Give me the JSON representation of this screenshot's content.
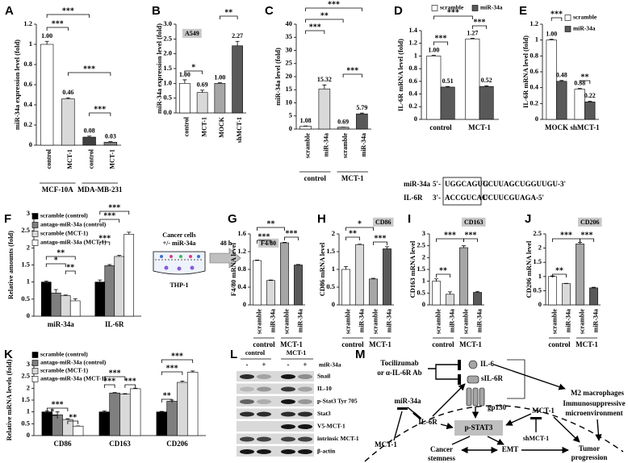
{
  "chart_data": [
    {
      "type": "bar",
      "panel": "A",
      "y_label": "miR-34a expression level (fold)",
      "categories": [
        "control",
        "MCT-1",
        "control",
        "MCT-1"
      ],
      "groups": [
        "MCF-10A",
        "MDA-MB-231"
      ],
      "values": [
        1,
        0.46,
        0.08,
        0.03
      ],
      "value_labels": [
        "1.00",
        "0.46",
        "0.08",
        "0.03"
      ],
      "errors": [
        0.03,
        0.01,
        0.01,
        0.005
      ],
      "colors": [
        "#ffffff",
        "#d9d9d9",
        "#404040",
        "#7f7f7f"
      ],
      "data_labels": true,
      "ylim": [
        0,
        1.2
      ],
      "yticks": [
        0,
        0.2,
        0.4,
        0.6,
        0.8,
        1,
        1.2
      ],
      "annotations": [
        "***",
        "***",
        "***",
        "***"
      ]
    },
    {
      "type": "bar",
      "panel": "B",
      "tag": "A549",
      "y_label": "miR-34a expression level (fold)",
      "categories": [
        "control",
        "MCT-1",
        "MOCK",
        "shMCT-1"
      ],
      "values": [
        1,
        0.69,
        1,
        2.27
      ],
      "value_labels": [
        "1.00",
        "0.69",
        "1.00",
        "2.27"
      ],
      "errors": [
        0.12,
        0.08,
        0.02,
        0.15
      ],
      "colors": [
        "#ffffff",
        "#d9d9d9",
        "#a6a6a6",
        "#595959"
      ],
      "data_labels": true,
      "ylim": [
        0,
        3
      ],
      "yticks": [
        {
          "value": 0,
          "label": "0.0"
        },
        0.5,
        {
          "value": 1,
          "label": "1.0"
        },
        1.5,
        {
          "value": 2,
          "label": "2.0"
        },
        2.5,
        {
          "value": 3,
          "label": "3.0"
        }
      ],
      "annotations": [
        "*",
        "**"
      ]
    },
    {
      "type": "bar",
      "panel": "C",
      "y_label": "miR-34a level (fold)",
      "categories": [
        "scramble",
        "miR-34a",
        "scramble",
        "miR-34a"
      ],
      "groups": [
        "control",
        "MCT-1"
      ],
      "values": [
        1.08,
        15.32,
        0.69,
        5.79
      ],
      "errors": [
        0.1,
        1.5,
        0.05,
        0.3
      ],
      "colors": [
        "#ffffff",
        "#d9d9d9",
        "#a6a6a6",
        "#595959"
      ],
      "data_labels": true,
      "ylim": [
        0,
        40
      ],
      "yticks": [
        0,
        5,
        10,
        15,
        20,
        25,
        30,
        35,
        40
      ],
      "annotations": [
        "***",
        "**",
        "***",
        "***"
      ]
    },
    {
      "type": "bar",
      "panel": "D",
      "y_label": "IL-6R mRNA level (fold)",
      "categories": [
        "control",
        "MCT-1"
      ],
      "series": [
        {
          "name": "scramble",
          "color": "#ffffff",
          "values": [
            1,
            1.27
          ],
          "value_labels": [
            "1.00",
            "1.27"
          ],
          "errors": [
            0.01,
            0.01
          ]
        },
        {
          "name": "miR-34a",
          "color": "#595959",
          "values": [
            0.51,
            0.52
          ],
          "errors": [
            0.01,
            0.01
          ]
        }
      ],
      "data_labels": true,
      "ylim": [
        0,
        1.4
      ],
      "yticks": [
        0,
        0.2,
        0.4,
        0.6,
        0.8,
        1,
        1.2,
        1.4
      ],
      "annotations": [
        "***",
        "***",
        "***"
      ]
    },
    {
      "type": "bar",
      "panel": "E",
      "y_label": "IL-6R mRNA level (fold)",
      "categories": [
        "MOCK",
        "shMCT-1"
      ],
      "series": [
        {
          "name": "scramble",
          "color": "#ffffff",
          "values": [
            1,
            0.38
          ],
          "value_labels": [
            "1.00",
            "0.38"
          ],
          "errors": [
            0.01,
            0.01
          ]
        },
        {
          "name": "miR-34a",
          "color": "#595959",
          "values": [
            0.48,
            0.22
          ],
          "errors": [
            0.01,
            0.01
          ]
        }
      ],
      "data_labels": true,
      "ylim": [
        0,
        1.2
      ],
      "yticks": [
        0,
        0.2,
        0.4,
        0.6,
        0.8,
        1,
        1.2
      ],
      "annotations": [
        "***",
        "**"
      ]
    },
    {
      "type": "bar",
      "panel": "F",
      "y_label": "Relative amounts (fold)",
      "categories": [
        "miR-34a",
        "IL-6R"
      ],
      "series": [
        {
          "name": "scramble (control)",
          "color": "#000000",
          "values": [
            1,
            1
          ],
          "errors": [
            0.03,
            0.06
          ]
        },
        {
          "name": "antago-miR-34a (control)",
          "color": "#7f7f7f",
          "values": [
            0.68,
            1.48
          ],
          "errors": [
            0.1,
            0.03
          ]
        },
        {
          "name": "scramble (MCT-1)",
          "color": "#d9d9d9",
          "values": [
            0.6,
            1.75
          ],
          "errors": [
            0.02,
            0.03
          ]
        },
        {
          "name": "antago-miR-34a (MCT-1)",
          "color": "#ffffff",
          "values": [
            0.45,
            2.4
          ],
          "errors": [
            0.06,
            0.06
          ]
        }
      ],
      "ylim": [
        0,
        3
      ],
      "yticks": [
        0,
        0.5,
        1,
        1.5,
        2,
        2.5,
        3
      ],
      "annotations": [
        "**",
        "*",
        "**",
        "***",
        "***",
        "***"
      ]
    },
    {
      "type": "bar",
      "panel": "G",
      "tag": "F4/80",
      "y_label": "F4/80 mRNA level",
      "categories": [
        "scramble",
        "miR-34a",
        "scramble",
        "miR-34a"
      ],
      "groups": [
        "control",
        "MCT-1"
      ],
      "values": [
        1,
        0.55,
        1.4,
        0.9
      ],
      "errors": [
        0.01,
        0.01,
        0.01,
        0.01
      ],
      "colors": [
        "#ffffff",
        "#d9d9d9",
        "#a6a6a6",
        "#595959"
      ],
      "ylim": [
        0,
        1.6
      ],
      "yticks": [
        0,
        0.4,
        0.8,
        1.2,
        1.6
      ],
      "annotations": [
        "***",
        "**",
        "***"
      ]
    },
    {
      "type": "bar",
      "panel": "H",
      "tag": "CD86",
      "y_label": "CD86 mRNA level",
      "categories": [
        "scramble",
        "miR-34a",
        "scramble",
        "miR-34a"
      ],
      "groups": [
        "control",
        "MCT-1"
      ],
      "values": [
        1,
        1.7,
        0.73,
        1.58
      ],
      "errors": [
        0.08,
        0.01,
        0.02,
        0.06
      ],
      "colors": [
        "#ffffff",
        "#d9d9d9",
        "#a6a6a6",
        "#595959"
      ],
      "ylim": [
        0,
        2
      ],
      "yticks": [
        0,
        0.5,
        1,
        1.5,
        2
      ],
      "annotations": [
        "**",
        "*",
        "***"
      ]
    },
    {
      "type": "bar",
      "panel": "I",
      "tag": "CD163",
      "y_label": "CD163 mRNA level",
      "categories": [
        "scramble",
        "miR-34a",
        "scramble",
        "miR-34a"
      ],
      "groups": [
        "control",
        "MCT-1"
      ],
      "values": [
        1,
        0.45,
        2.42,
        0.53
      ],
      "errors": [
        0.1,
        0.1,
        0.08,
        0.04
      ],
      "colors": [
        "#ffffff",
        "#d9d9d9",
        "#a6a6a6",
        "#595959"
      ],
      "ylim": [
        0,
        3
      ],
      "yticks": [
        0,
        0.5,
        1,
        1.5,
        2,
        2.5,
        3
      ],
      "annotations": [
        "**",
        "***",
        "***"
      ]
    },
    {
      "type": "bar",
      "panel": "J",
      "tag": "CD206",
      "y_label": "CD206 mRNA level",
      "categories": [
        "scramble",
        "miR-34a",
        "scramble",
        "miR-34a"
      ],
      "groups": [
        "control",
        "MCT-1"
      ],
      "values": [
        1,
        0.75,
        2.15,
        0.6
      ],
      "errors": [
        0.02,
        0.01,
        0.05,
        0.02
      ],
      "colors": [
        "#ffffff",
        "#d9d9d9",
        "#a6a6a6",
        "#595959"
      ],
      "ylim": [
        0,
        2.5
      ],
      "yticks": [
        0,
        0.5,
        1,
        1.5,
        2,
        2.5
      ],
      "annotations": [
        "**",
        "***",
        "***"
      ]
    },
    {
      "type": "bar",
      "panel": "K",
      "y_label": "Relative mRNA levels (fold)",
      "categories": [
        "CD86",
        "CD163",
        "CD206"
      ],
      "series": [
        {
          "name": "scramble (control)",
          "color": "#000000",
          "values": [
            1,
            1,
            1
          ],
          "errors": [
            0.04,
            0.04,
            0.02
          ]
        },
        {
          "name": "antago-miR-34a (control)",
          "color": "#7f7f7f",
          "values": [
            0.88,
            1.8,
            1.45
          ],
          "errors": [
            0.12,
            0.02,
            0.05
          ]
        },
        {
          "name": "scramble (MCT-1)",
          "color": "#d9d9d9",
          "values": [
            0.68,
            1.75,
            2.25
          ],
          "errors": [
            0.03,
            0.02,
            0.05
          ]
        },
        {
          "name": "antago-miR-34a (MCT-1)",
          "color": "#ffffff",
          "values": [
            0.4,
            1.98,
            2.68
          ],
          "errors": [
            0.01,
            0.02,
            0.05
          ]
        }
      ],
      "ylim": [
        0,
        3
      ],
      "yticks": [
        0,
        0.5,
        1,
        1.5,
        2,
        2.5,
        3
      ],
      "annotations": [
        "***",
        "*",
        "**",
        "***",
        "***",
        "***",
        "***",
        "***",
        "**"
      ]
    }
  ],
  "alignment": {
    "rows": [
      [
        "miR-34a",
        "5'-",
        "UGGCAGUG",
        "UCUUAGCUGGUUGU-3'"
      ],
      [
        "IL-6R",
        "3'-",
        "ACCGUCAC",
        "UCUUCGUAGA-5'"
      ]
    ]
  },
  "schematic": {
    "cells": [
      "Cancer cells",
      "+/- miR-34a"
    ],
    "time": "48 h",
    "target": "THP-1"
  },
  "blot": {
    "panel": "L",
    "groups": [
      "control",
      "MCT-1"
    ],
    "treatment": "miR-34a",
    "lanes": [
      "-",
      "+",
      "-",
      "+"
    ],
    "rows": [
      "Snail",
      "IL-10",
      "p-Stat3 Tyr 705",
      "Stat3",
      "V5-MCT-1",
      "intrinsic MCT-1",
      "β-actin"
    ]
  },
  "diagram": {
    "panel": "M",
    "drug": [
      "Tocilizumab",
      "or α-IL-6R Ab"
    ],
    "il6": "IL-6",
    "sil6r": "sIL-6R",
    "gp130": "gp130",
    "m2": [
      "M2 macrophages",
      "Immunosuppressive",
      "microenvironment"
    ],
    "mir": "miR-34a",
    "il6r": "IL-6R",
    "stat3": "p-STAT3",
    "mct_left": "MCT-1",
    "mct_right": "MCT-1",
    "sh": "shMCT-1",
    "stemness": [
      "Cancer",
      "stemness"
    ],
    "emt": "EMT",
    "tumor": [
      "Tumor",
      "progression"
    ]
  }
}
